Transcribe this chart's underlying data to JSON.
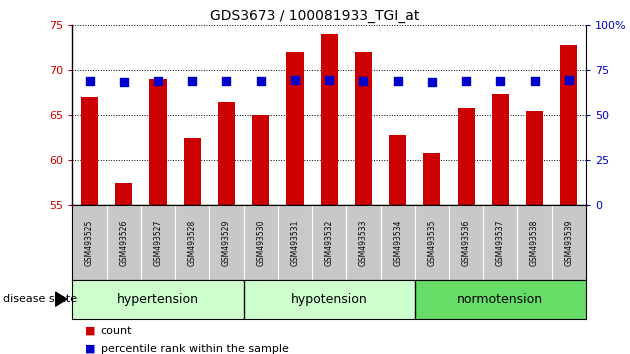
{
  "title": "GDS3673 / 100081933_TGI_at",
  "samples": [
    "GSM493525",
    "GSM493526",
    "GSM493527",
    "GSM493528",
    "GSM493529",
    "GSM493530",
    "GSM493531",
    "GSM493532",
    "GSM493533",
    "GSM493534",
    "GSM493535",
    "GSM493536",
    "GSM493537",
    "GSM493538",
    "GSM493539"
  ],
  "count_values": [
    67.0,
    57.5,
    69.0,
    62.5,
    66.5,
    65.0,
    72.0,
    74.0,
    72.0,
    62.8,
    60.8,
    65.8,
    67.3,
    65.5,
    72.8
  ],
  "percentile_values": [
    69.0,
    68.4,
    69.0,
    68.6,
    69.0,
    69.0,
    69.2,
    69.2,
    69.0,
    68.6,
    68.4,
    69.0,
    69.0,
    68.6,
    69.2
  ],
  "ylim_left": [
    55,
    75
  ],
  "ylim_right": [
    0,
    100
  ],
  "yticks_left": [
    55,
    60,
    65,
    70,
    75
  ],
  "yticks_right": [
    0,
    25,
    50,
    75,
    100
  ],
  "bar_color": "#CC0000",
  "dot_color": "#0000CC",
  "plot_bg": "#ffffff",
  "tick_label_color_left": "#CC0000",
  "tick_label_color_right": "#0000CC",
  "legend_count_color": "#CC0000",
  "legend_pct_color": "#0000CC",
  "disease_state_label": "disease state",
  "legend_count": "count",
  "legend_pct": "percentile rank within the sample",
  "bar_width": 0.5,
  "dot_size": 35,
  "dot_marker": "s",
  "group_light_green": "#ccffcc",
  "group_med_green": "#66dd66",
  "sample_box_color": "#c8c8c8"
}
